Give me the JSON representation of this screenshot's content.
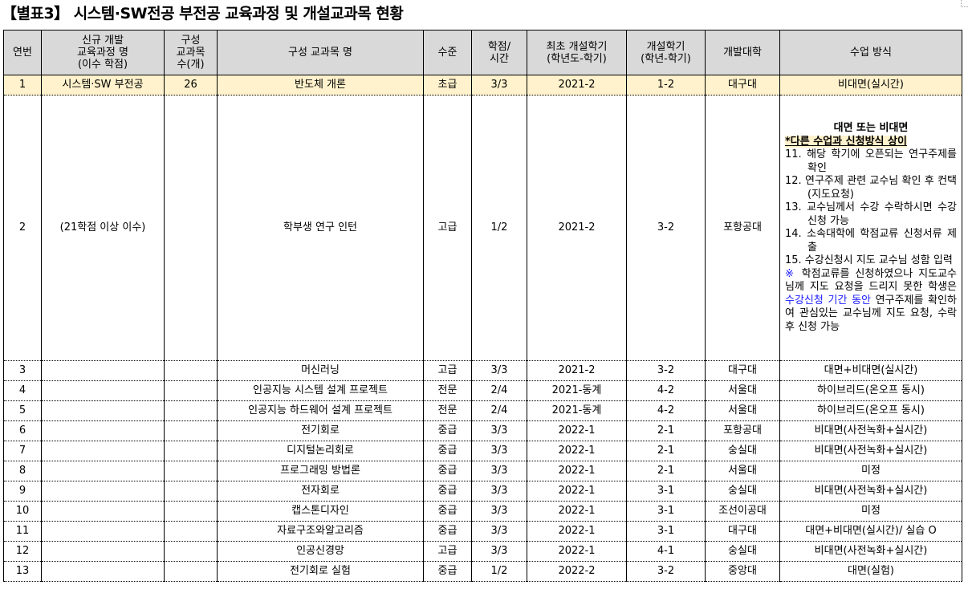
{
  "title": "【별표3】 시스템·SW전공 부전공 교육과정 및 개설교과목 현황",
  "headers": [
    "연번",
    "신규 개발\n교육과정 명\n(이수 학점)",
    "구성\n교과목\n수(개)",
    "구성 교과목 명",
    "수준",
    "학점/\n시간",
    "최초 개설학기\n(학년도-학기)",
    "개설학기\n(학년-학기)",
    "개발대학",
    "수업 방식"
  ],
  "rows": [
    [
      "1",
      "시스템·SW 부전공",
      "26",
      "반도체 개론",
      "초급",
      "3/3",
      "2021-2",
      "1-2",
      "대구대",
      "비대면(실시간)"
    ],
    [
      "2",
      "(21학점 이상 이수)",
      "",
      "학부생 연구 인턴",
      "고급",
      "1/2",
      "2021-2",
      "3-2",
      "포항공대",
      ""
    ],
    [
      "3",
      "",
      "",
      "머신러닝",
      "고급",
      "3/3",
      "2021-2",
      "3-2",
      "대구대",
      "대면+비대면(실시간)"
    ],
    [
      "4",
      "",
      "",
      "인공지능 시스템 설계 프로젝트",
      "전문",
      "2/4",
      "2021-동계",
      "4-2",
      "서울대",
      "하이브리드(온오프 동시)"
    ],
    [
      "5",
      "",
      "",
      "인공지능 하드웨어 설계 프로젝트",
      "전문",
      "2/4",
      "2021-동계",
      "4-2",
      "서울대",
      "하이브리드(온오프 동시)"
    ],
    [
      "6",
      "",
      "",
      "전기회로",
      "중급",
      "3/3",
      "2022-1",
      "2-1",
      "포항공대",
      "비대면(사전녹화+실시간)"
    ],
    [
      "7",
      "",
      "",
      "디지털논리회로",
      "중급",
      "3/3",
      "2022-1",
      "2-1",
      "숭실대",
      "비대면(사전녹화+실시간)"
    ],
    [
      "8",
      "",
      "",
      "프로그래밍 방법론",
      "중급",
      "3/3",
      "2022-1",
      "2-1",
      "서울대",
      "미정"
    ],
    [
      "9",
      "",
      "",
      "전자회로",
      "중급",
      "3/3",
      "2022-1",
      "3-1",
      "숭실대",
      "비대면(사전녹화+실시간)"
    ],
    [
      "10",
      "",
      "",
      "캡스톤디자인",
      "중급",
      "3/3",
      "2022-1",
      "3-1",
      "조선이공대",
      "미정"
    ],
    [
      "11",
      "",
      "",
      "자료구조와알고리즘",
      "중급",
      "3/3",
      "2022-1",
      "3-1",
      "대구대",
      "대면+비대면(실시간)/ 실습 O"
    ],
    [
      "12",
      "",
      "",
      "인공신경망",
      "고급",
      "3/3",
      "2022-1",
      "4-1",
      "숭실대",
      "비대면(사전녹화+실시간)"
    ],
    [
      "13",
      "",
      "",
      "전기회로 실험",
      "중급",
      "1/2",
      "2022-2",
      "3-2",
      "중앙대",
      "대면(실험)"
    ]
  ],
  "row2_method": {
    "heading": "대면 또는 비대면",
    "note": "*다른 수업과 신청방식 상이",
    "steps": [
      "11. 해당 학기에 오픈되는 연구주제를 확인",
      "12. 연구주제 관련 교수님 확인 후 컨택(지도요청)",
      "13. 교수님께서 수강 수락하시면 수강신청 가능",
      "14. 소속대학에 학점교류 신청서류 제출",
      "15. 수강신청시 지도 교수님 성함 입력"
    ],
    "mark": "※",
    "remark_a": " 학점교류를 신청하였으나 지도교수님께 지도 요청을 드리지 못한 학생은 ",
    "remark_blue": "수강신청 기간 동안",
    "remark_b": " 연구주제를 확인하여 관심있는 교수님께 지도 요청, 수락 후 신청 가능"
  },
  "colors": {
    "header_bg": "#d9d9d9",
    "highlight_row": "#fff2cc",
    "blue_text": "#1a1aff"
  }
}
